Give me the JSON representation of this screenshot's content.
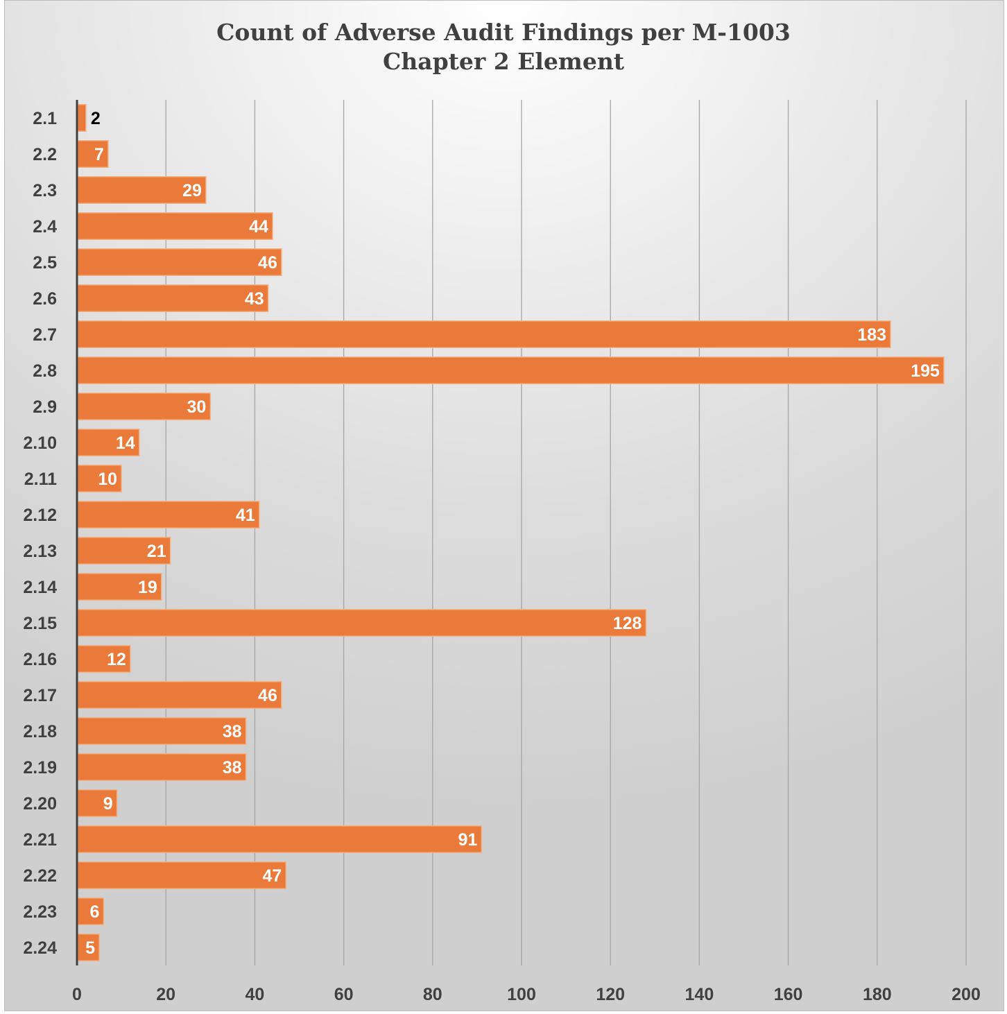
{
  "chart_data": {
    "type": "bar",
    "orientation": "horizontal",
    "title": "Count of Adverse Audit Findings per M-1003 Chapter 2 Element",
    "title_lines": [
      "Count of Adverse Audit Findings per M-1003",
      "Chapter 2 Element"
    ],
    "categories": [
      "2.1",
      "2.2",
      "2.3",
      "2.4",
      "2.5",
      "2.6",
      "2.7",
      "2.8",
      "2.9",
      "2.10",
      "2.11",
      "2.12",
      "2.13",
      "2.14",
      "2.15",
      "2.16",
      "2.17",
      "2.18",
      "2.19",
      "2.20",
      "2.21",
      "2.22",
      "2.23",
      "2.24"
    ],
    "values": [
      2,
      7,
      29,
      44,
      46,
      43,
      183,
      195,
      30,
      14,
      10,
      41,
      21,
      19,
      128,
      12,
      46,
      38,
      38,
      9,
      91,
      47,
      6,
      5
    ],
    "xlabel": "",
    "ylabel": "",
    "xlim": [
      0,
      200
    ],
    "x_ticks": [
      0,
      20,
      40,
      60,
      80,
      100,
      120,
      140,
      160,
      180,
      200
    ],
    "grid": "vertical",
    "legend": "none",
    "data_labels": true,
    "colors": {
      "bar": "#e97a3a",
      "bar_edge": "#f4b183",
      "label_inside": "#ffffff",
      "label_outside": "#000000",
      "gridline": "#a6a6a6",
      "axis": "#404040"
    }
  }
}
